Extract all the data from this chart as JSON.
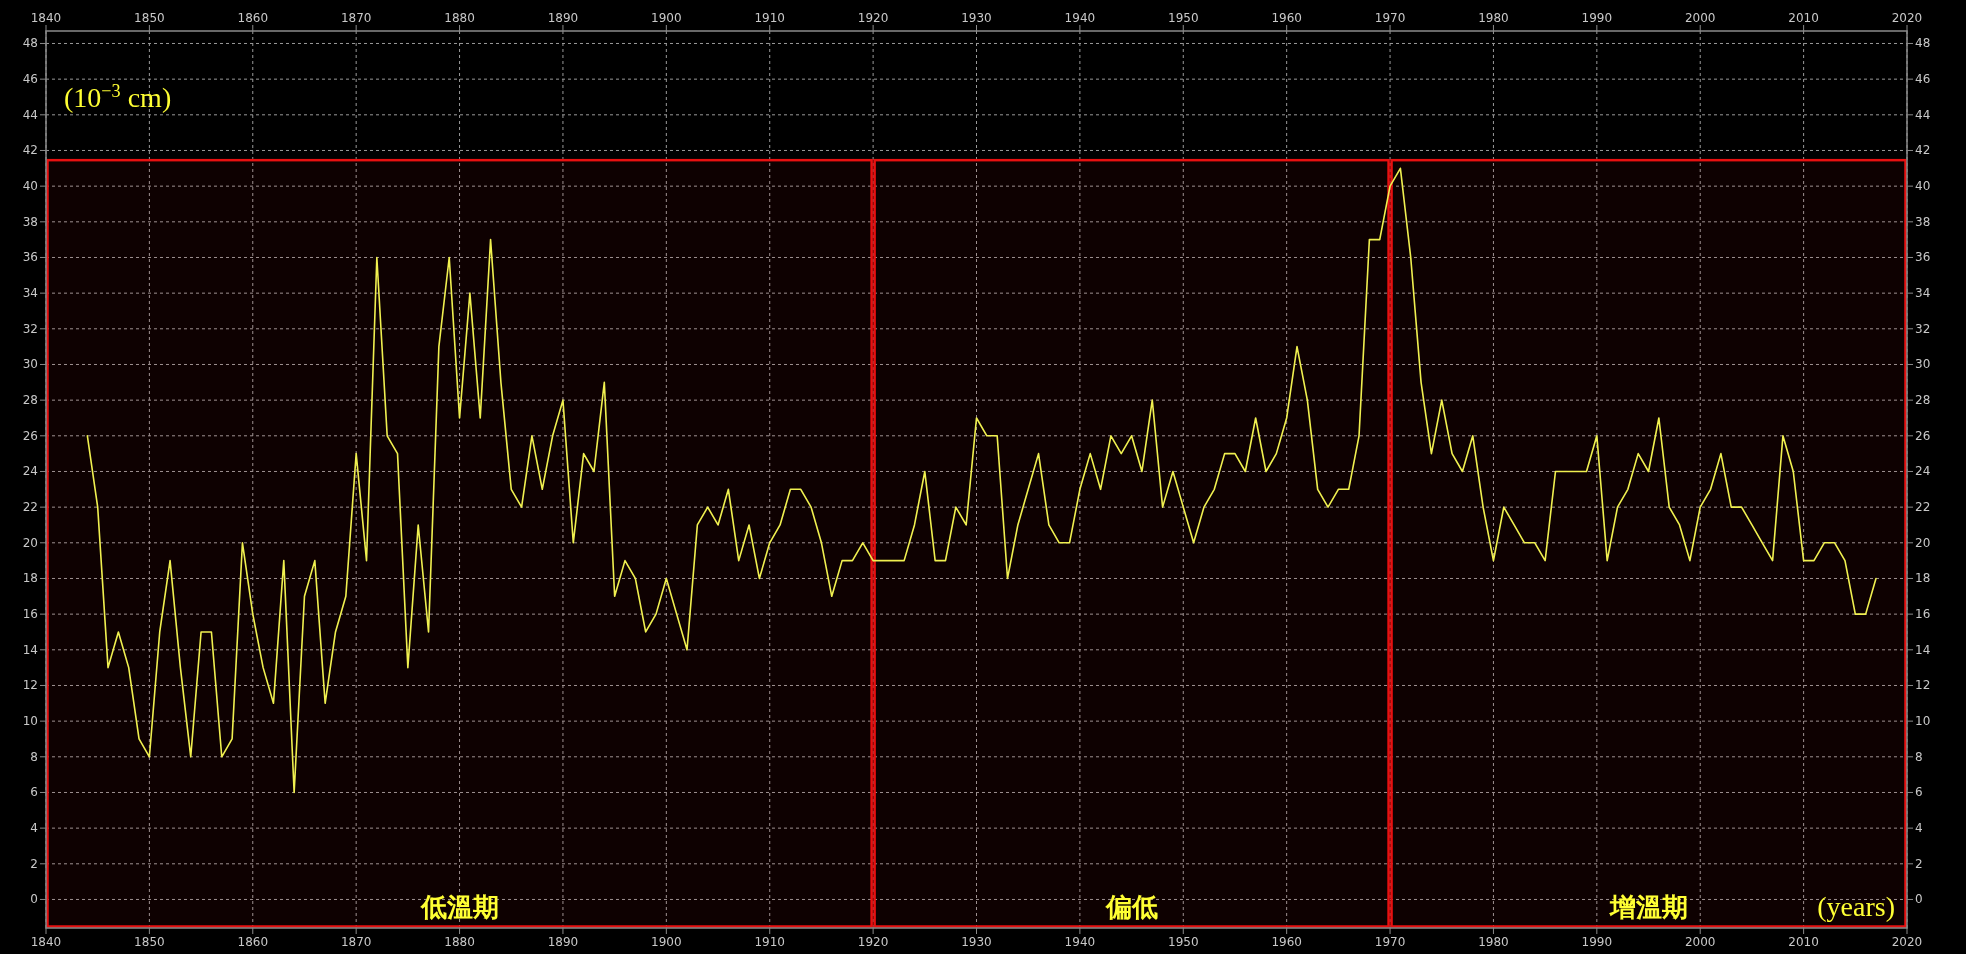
{
  "chart_data": {
    "type": "line",
    "xlabel": "(years)",
    "ylabel": "(10$^{−3}$ cm)",
    "x": [
      1844,
      1845,
      1846,
      1847,
      1848,
      1849,
      1850,
      1851,
      1852,
      1853,
      1854,
      1855,
      1856,
      1857,
      1858,
      1859,
      1860,
      1861,
      1862,
      1863,
      1864,
      1865,
      1866,
      1867,
      1868,
      1869,
      1870,
      1871,
      1872,
      1873,
      1874,
      1875,
      1876,
      1877,
      1878,
      1879,
      1880,
      1881,
      1882,
      1883,
      1884,
      1885,
      1886,
      1887,
      1888,
      1889,
      1890,
      1891,
      1892,
      1893,
      1894,
      1895,
      1896,
      1897,
      1898,
      1899,
      1900,
      1901,
      1902,
      1903,
      1904,
      1905,
      1906,
      1907,
      1908,
      1909,
      1910,
      1911,
      1912,
      1913,
      1914,
      1915,
      1916,
      1917,
      1918,
      1919,
      1920,
      1921,
      1922,
      1923,
      1924,
      1925,
      1926,
      1927,
      1928,
      1929,
      1930,
      1931,
      1932,
      1933,
      1934,
      1935,
      1936,
      1937,
      1938,
      1939,
      1940,
      1941,
      1942,
      1943,
      1944,
      1945,
      1946,
      1947,
      1948,
      1949,
      1950,
      1951,
      1952,
      1953,
      1954,
      1955,
      1956,
      1957,
      1958,
      1959,
      1960,
      1961,
      1962,
      1963,
      1964,
      1965,
      1966,
      1967,
      1968,
      1969,
      1970,
      1971,
      1972,
      1973,
      1974,
      1975,
      1976,
      1977,
      1978,
      1979,
      1980,
      1981,
      1982,
      1983,
      1984,
      1985,
      1986,
      1987,
      1988,
      1989,
      1990,
      1991,
      1992,
      1993,
      1994,
      1995,
      1996,
      1997,
      1998,
      1999,
      2000,
      2001,
      2002,
      2003,
      2004,
      2005,
      2006,
      2007,
      2008,
      2009,
      2010,
      2011,
      2012,
      2013,
      2014,
      2015,
      2016,
      2017
    ],
    "series": [
      {
        "color": "#f0f050",
        "values": [
          26,
          22,
          13,
          15,
          13,
          9,
          8,
          15,
          19,
          13,
          8,
          15,
          15,
          8,
          9,
          20,
          16,
          13,
          11,
          19,
          6,
          17,
          19,
          11,
          15,
          17,
          25,
          19,
          36,
          26,
          25,
          13,
          21,
          15,
          31,
          36,
          27,
          34,
          27,
          37,
          29,
          23,
          22,
          26,
          23,
          26,
          28,
          20,
          25,
          24,
          29,
          17,
          19,
          18,
          15,
          16,
          18,
          16,
          14,
          21,
          22,
          21,
          23,
          19,
          21,
          18,
          20,
          21,
          23,
          23,
          22,
          20,
          17,
          19,
          19,
          20,
          19,
          19,
          19,
          19,
          21,
          24,
          19,
          19,
          22,
          21,
          27,
          26,
          26,
          18,
          21,
          23,
          25,
          21,
          20,
          20,
          23,
          25,
          23,
          26,
          25,
          26,
          24,
          28,
          22,
          24,
          22,
          20,
          22,
          23,
          25,
          25,
          24,
          27,
          24,
          25,
          27,
          31,
          28,
          23,
          22,
          23,
          23,
          26,
          37,
          37,
          40,
          41,
          36,
          29,
          25,
          28,
          25,
          24,
          26,
          22,
          19,
          22,
          21,
          20,
          20,
          19,
          24,
          24,
          24,
          24,
          26,
          19,
          22,
          23,
          25,
          24,
          27,
          22,
          21,
          19,
          22,
          23,
          25,
          22,
          22,
          21,
          20,
          19,
          26,
          24,
          19,
          19,
          20,
          20,
          19,
          16,
          16,
          18
        ]
      }
    ],
    "xlim": [
      1840,
      2020
    ],
    "xticks": [
      1840,
      1850,
      1860,
      1870,
      1880,
      1890,
      1900,
      1910,
      1920,
      1930,
      1940,
      1950,
      1960,
      1970,
      1980,
      1990,
      2000,
      2010,
      2020
    ],
    "x2lim": [
      1840,
      2020
    ],
    "x2ticks": [
      1840,
      1850,
      1860,
      1870,
      1880,
      1890,
      1900,
      1910,
      1920,
      1930,
      1940,
      1950,
      1960,
      1970,
      1980,
      1990,
      2000,
      2010,
      2020
    ],
    "ylim": [
      -1.6,
      48.7
    ],
    "yticks": [
      0,
      2,
      4,
      6,
      8,
      10,
      12,
      14,
      16,
      18,
      20,
      22,
      24,
      26,
      28,
      30,
      32,
      34,
      36,
      38,
      40,
      42,
      44,
      46,
      48
    ],
    "y2lim": [
      -1.6,
      48.7
    ],
    "y2ticks": [
      0,
      2,
      4,
      6,
      8,
      10,
      12,
      14,
      16,
      18,
      20,
      22,
      24,
      26,
      28,
      30,
      32,
      34,
      36,
      38,
      40,
      42,
      44,
      46,
      48
    ],
    "bands": [
      {
        "axis": "x",
        "from": 1840,
        "to": 1920,
        "label": "低溫期",
        "color": "#e81010"
      },
      {
        "axis": "x",
        "from": 1920,
        "to": 1970,
        "label": "偏低",
        "color": "#e81010"
      },
      {
        "axis": "x",
        "from": 1970,
        "to": 2020,
        "label": "增溫期",
        "color": "#e81010"
      }
    ],
    "grid": true,
    "marker": "none",
    "line_style": "solid"
  }
}
